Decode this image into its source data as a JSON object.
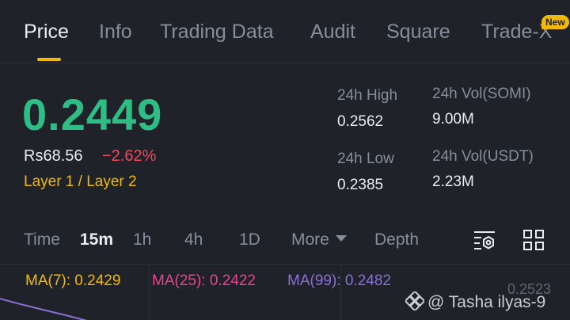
{
  "tabs": [
    {
      "label": "Price",
      "active": true
    },
    {
      "label": "Info"
    },
    {
      "label": "Trading Data"
    },
    {
      "label": "Audit"
    },
    {
      "label": "Square"
    },
    {
      "label": "Trade-X"
    }
  ],
  "new_badge": "New",
  "price": {
    "last": "0.2449",
    "fiat": "Rs68.56",
    "change": "−2.62%",
    "tags": "Layer 1 / Layer 2"
  },
  "stats": {
    "high_label": "24h High",
    "high_value": "0.2562",
    "low_label": "24h Low",
    "low_value": "0.2385",
    "vol_base_label": "24h Vol(SOMI)",
    "vol_base_value": "9.00M",
    "vol_quote_label": "24h Vol(USDT)",
    "vol_quote_value": "2.23M"
  },
  "intervals": {
    "time": "Time",
    "m15": "15m",
    "h1": "1h",
    "h4": "4h",
    "d1": "1D",
    "more": "More",
    "depth": "Depth",
    "selected": "15m"
  },
  "icons": {
    "settings": "chart-settings-icon",
    "layout": "grid-layout-icon"
  },
  "indicators": {
    "ma7": "MA(7): 0.2429",
    "ma25": "MA(25): 0.2422",
    "ma99": "MA(99): 0.2482"
  },
  "chart": {
    "axis_price": "0.2523"
  },
  "watermark": "@ Tasha ilyas-9",
  "colors": {
    "background": "#1f2329",
    "up": "#2ebd85",
    "down": "#f6465d",
    "accent": "#f0b90b",
    "ma7": "#f0b90b",
    "ma25": "#e84393",
    "ma99": "#8b6fd6"
  }
}
